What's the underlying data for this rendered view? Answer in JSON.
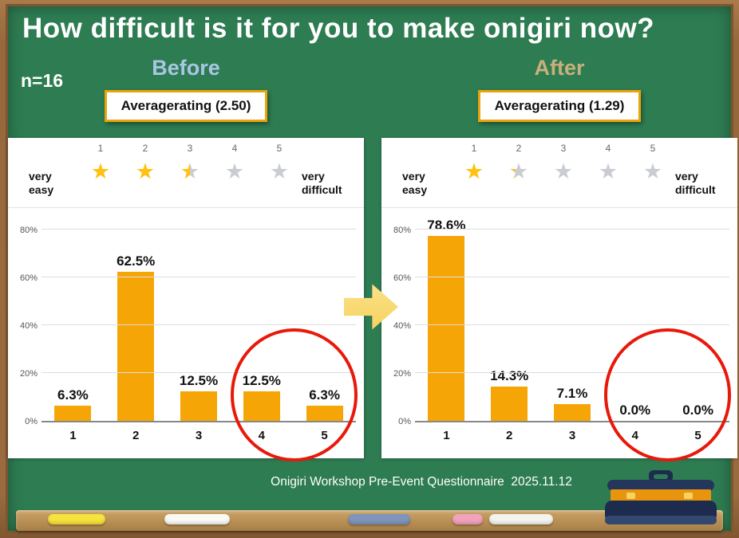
{
  "page": {
    "title": "How difficult is it for you to make onigiri now?",
    "sample_size": "n=16",
    "footer": "Onigiri Workshop Pre-Event Questionnaire  2025.11.12"
  },
  "colors": {
    "board_green": "#2E7C52",
    "frame_wood": "#9A6B3F",
    "bar_orange": "#F5A606",
    "circle_red": "#E8190A",
    "arrow_yellow": "#F7D25E",
    "before_heading": "#A9C6E3",
    "after_heading": "#C8B07C",
    "box_border": "#EBA40B",
    "star_gold": "#FFC20E",
    "star_gray": "#C9CDD2"
  },
  "chart_data": [
    {
      "type": "bar",
      "name": "before",
      "heading": "Before",
      "average_label": "Averagerating (2.50)",
      "average": 2.5,
      "scale_left": "very easy",
      "scale_right": "very difficult",
      "categories": [
        "1",
        "2",
        "3",
        "4",
        "5"
      ],
      "values": [
        6.3,
        62.5,
        12.5,
        12.5,
        6.3
      ],
      "value_labels": [
        "6.3%",
        "62.5%",
        "12.5%",
        "12.5%",
        "6.3%"
      ],
      "star_fills": [
        1,
        1,
        0.5,
        0,
        0
      ],
      "yticks": [
        0,
        20,
        40,
        60,
        80
      ],
      "ytick_labels": [
        "0%",
        "20%",
        "40%",
        "60%",
        "80%"
      ],
      "ylim": [
        0,
        85
      ],
      "grid": true,
      "legend": false,
      "annotation": "categories 4 and 5 circled in red"
    },
    {
      "type": "bar",
      "name": "after",
      "heading": "After",
      "average_label": "Averagerating (1.29)",
      "average": 1.29,
      "scale_left": "very easy",
      "scale_right": "very difficult",
      "categories": [
        "1",
        "2",
        "3",
        "4",
        "5"
      ],
      "values": [
        78.6,
        14.3,
        7.1,
        0.0,
        0.0
      ],
      "value_labels": [
        "78.6%",
        "14.3%",
        "7.1%",
        "0.0%",
        "0.0%"
      ],
      "star_fills": [
        1,
        0.29,
        0,
        0,
        0
      ],
      "yticks": [
        0,
        20,
        40,
        60,
        80
      ],
      "ytick_labels": [
        "0%",
        "20%",
        "40%",
        "60%",
        "80%"
      ],
      "ylim": [
        0,
        85
      ],
      "grid": true,
      "legend": false,
      "annotation": "categories 4 and 5 circled in red"
    }
  ],
  "decorations": {
    "chalk_colors": [
      "#F6E33B",
      "#FAFAF5",
      "#7E95BC",
      "#F2A2BC",
      "#F3F4EF"
    ]
  }
}
